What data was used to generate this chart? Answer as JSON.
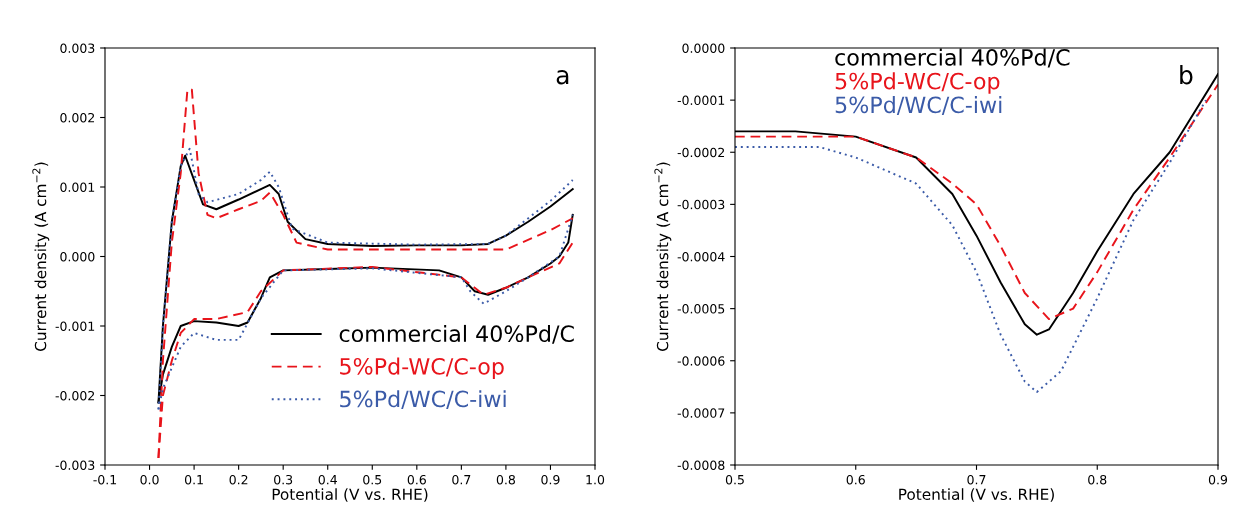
{
  "chart_data": [
    {
      "type": "line",
      "xlabel": "Potential (V vs. RHE)",
      "ylabel": "Current density (A cm$^{−2}$)",
      "annotations": [
        "a"
      ],
      "legend": "bottom right",
      "xlim": [
        -0.1,
        1.0
      ],
      "xticks": [
        -0.1,
        {
          "value": 0,
          "label": "0.0"
        },
        0.1,
        0.2,
        0.3,
        0.4,
        0.5,
        0.6,
        0.7,
        0.8,
        0.9,
        {
          "value": 1,
          "label": "1.0"
        }
      ],
      "ylim": [
        -0.003,
        0.003
      ],
      "yticks": [
        -0.003,
        -0.002,
        -0.001,
        {
          "value": 0,
          "label": "0.000"
        },
        0.001,
        0.002,
        0.003
      ],
      "series": [
        {
          "name": "commercial 40%Pd/C",
          "color": "#000000",
          "line_style": "solid",
          "x": [
            0.02,
            0.03,
            0.05,
            0.07,
            0.08,
            0.1,
            0.12,
            0.15,
            0.2,
            0.25,
            0.27,
            0.29,
            0.31,
            0.35,
            0.4,
            0.5,
            0.6,
            0.7,
            0.76,
            0.8,
            0.85,
            0.9,
            0.95
          ],
          "values": [
            -0.0021,
            -0.001,
            0.0005,
            0.0013,
            0.00145,
            0.0011,
            0.00075,
            0.00068,
            0.00082,
            0.00097,
            0.00103,
            0.0009,
            0.0005,
            0.00025,
            0.00018,
            0.00015,
            0.00016,
            0.00016,
            0.00018,
            0.0003,
            0.0005,
            0.00072,
            0.00097
          ]
        },
        {
          "color": "#000000",
          "line_style": "solid",
          "x": [
            0.02,
            0.03,
            0.05,
            0.07,
            0.1,
            0.15,
            0.2,
            0.22,
            0.25,
            0.27,
            0.3,
            0.4,
            0.5,
            0.65,
            0.7,
            0.73,
            0.76,
            0.8,
            0.85,
            0.9,
            0.92,
            0.94,
            0.95
          ],
          "values": [
            -0.0021,
            -0.0017,
            -0.0013,
            -0.001,
            -0.00093,
            -0.00095,
            -0.001,
            -0.00095,
            -0.0006,
            -0.0003,
            -0.0002,
            -0.00018,
            -0.00016,
            -0.0002,
            -0.0003,
            -0.0005,
            -0.00055,
            -0.00045,
            -0.0003,
            -0.0001,
            0.0,
            0.0002,
            0.0006
          ]
        },
        {
          "name": "5%Pd-WC/C-op",
          "color": "#e8141b",
          "line_style": "dashed",
          "x": [
            0.02,
            0.03,
            0.05,
            0.07,
            0.085,
            0.095,
            0.11,
            0.13,
            0.15,
            0.2,
            0.25,
            0.27,
            0.3,
            0.33,
            0.4,
            0.5,
            0.7,
            0.8,
            0.9,
            0.95
          ],
          "values": [
            -0.0029,
            -0.0015,
            0.0002,
            0.0012,
            0.0024,
            0.0024,
            0.0012,
            0.0006,
            0.00055,
            0.00068,
            0.0008,
            0.00092,
            0.0006,
            0.0002,
            0.0001,
            0.0001,
            0.0001,
            0.0001,
            0.00038,
            0.00055
          ]
        },
        {
          "color": "#e8141b",
          "line_style": "dashed",
          "x": [
            0.02,
            0.03,
            0.05,
            0.07,
            0.1,
            0.15,
            0.22,
            0.25,
            0.3,
            0.5,
            0.7,
            0.75,
            0.8,
            0.85,
            0.92,
            0.95
          ],
          "values": [
            -0.0029,
            -0.002,
            -0.0015,
            -0.0011,
            -0.0009,
            -0.0009,
            -0.0008,
            -0.0005,
            -0.0002,
            -0.00015,
            -0.0003,
            -0.00055,
            -0.00045,
            -0.0003,
            -0.0001,
            0.0002
          ]
        },
        {
          "name": "5%Pd/WC/C-iwi",
          "color": "#3b5ba8",
          "line_style": "dotted",
          "x": [
            0.02,
            0.03,
            0.05,
            0.07,
            0.09,
            0.11,
            0.13,
            0.2,
            0.25,
            0.27,
            0.29,
            0.32,
            0.4,
            0.6,
            0.76,
            0.8,
            0.9,
            0.95
          ],
          "values": [
            -0.0022,
            -0.001,
            0.0005,
            0.0013,
            0.00155,
            0.0009,
            0.00078,
            0.0009,
            0.0011,
            0.00122,
            0.001,
            0.0004,
            0.0002,
            0.00017,
            0.00018,
            0.0003,
            0.0008,
            0.0011
          ]
        },
        {
          "color": "#3b5ba8",
          "line_style": "dotted",
          "x": [
            0.02,
            0.03,
            0.05,
            0.07,
            0.1,
            0.15,
            0.2,
            0.25,
            0.3,
            0.5,
            0.7,
            0.72,
            0.75,
            0.8,
            0.85,
            0.92,
            0.95
          ],
          "values": [
            -0.0022,
            -0.0019,
            -0.0016,
            -0.0013,
            -0.0011,
            -0.0012,
            -0.0012,
            -0.0006,
            -0.0002,
            -0.00017,
            -0.0003,
            -0.0005,
            -0.00068,
            -0.0005,
            -0.0003,
            0.0,
            0.0006
          ]
        }
      ]
    },
    {
      "type": "line",
      "xlabel": "Potential (V vs. RHE)",
      "ylabel": "Current density (A cm$^{−2}$)",
      "annotations": [
        "b"
      ],
      "legend": "top",
      "xlim": [
        0.5,
        0.9
      ],
      "xticks": [
        0.5,
        0.6,
        0.7,
        0.8,
        0.9
      ],
      "ylim": [
        -0.0008,
        0.0
      ],
      "yticks": [
        {
          "value": -0.0008,
          "label": "-0.0008"
        },
        {
          "value": -0.0007,
          "label": "-0.0007"
        },
        {
          "value": -0.0006,
          "label": "-0.0006"
        },
        {
          "value": -0.0005,
          "label": "-0.0005"
        },
        {
          "value": -0.0004,
          "label": "-0.0004"
        },
        {
          "value": -0.0003,
          "label": "-0.0003"
        },
        {
          "value": -0.0002,
          "label": "-0.0002"
        },
        {
          "value": -0.0001,
          "label": "-0.0001"
        },
        {
          "value": 0.0,
          "label": "0.0000"
        }
      ],
      "series": [
        {
          "name": "commercial 40%Pd/C",
          "color": "#000000",
          "line_style": "solid",
          "x": [
            0.5,
            0.55,
            0.6,
            0.65,
            0.68,
            0.7,
            0.72,
            0.74,
            0.75,
            0.76,
            0.78,
            0.8,
            0.83,
            0.86,
            0.9
          ],
          "values": [
            -0.00016,
            -0.00016,
            -0.00017,
            -0.00021,
            -0.00028,
            -0.00036,
            -0.00045,
            -0.00053,
            -0.00055,
            -0.00054,
            -0.00047,
            -0.00039,
            -0.00028,
            -0.0002,
            -5e-05
          ]
        },
        {
          "name": "5%Pd-WC/C-op",
          "color": "#e8141b",
          "line_style": "dashed",
          "x": [
            0.5,
            0.6,
            0.65,
            0.68,
            0.7,
            0.72,
            0.74,
            0.76,
            0.78,
            0.8,
            0.83,
            0.86,
            0.9
          ],
          "values": [
            -0.00017,
            -0.00017,
            -0.00021,
            -0.00026,
            -0.0003,
            -0.00038,
            -0.00047,
            -0.00052,
            -0.0005,
            -0.00043,
            -0.00031,
            -0.00021,
            -7e-05
          ]
        },
        {
          "name": "5%Pd/WC/C-iwi",
          "color": "#3b5ba8",
          "line_style": "dotted",
          "x": [
            0.5,
            0.57,
            0.6,
            0.65,
            0.68,
            0.7,
            0.72,
            0.74,
            0.75,
            0.77,
            0.8,
            0.83,
            0.86,
            0.89
          ],
          "values": [
            -0.00019,
            -0.00019,
            -0.00021,
            -0.00026,
            -0.00034,
            -0.00043,
            -0.00055,
            -0.00064,
            -0.00066,
            -0.00062,
            -0.00048,
            -0.00033,
            -0.00022,
            -0.0001
          ]
        }
      ]
    }
  ]
}
